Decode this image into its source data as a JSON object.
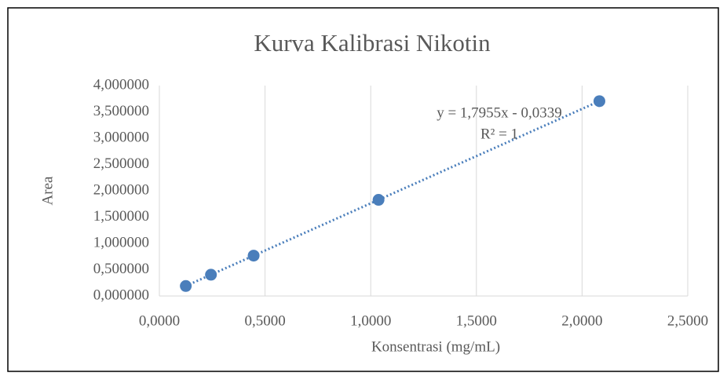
{
  "chart_data": {
    "type": "scatter",
    "title": "Kurva Kalibrasi Nikotin",
    "x_label": "Konsentrasi (mg/mL)",
    "y_label": "Area",
    "x": [
      0.125,
      0.244,
      0.446,
      1.037,
      2.082
    ],
    "series": [
      {
        "color": "#4a7ebb",
        "values": [
          0.19,
          0.404,
          0.767,
          1.828,
          3.704
        ]
      }
    ],
    "trendline": {
      "equation": "y = 1,7955x - 0,0339",
      "slope": 1.7955,
      "intercept": -0.0339,
      "r_squared_label": "R² = 1",
      "style": "dotted"
    },
    "xlim": [
      0,
      2.5
    ],
    "xticks": [
      {
        "value": 0,
        "label": "0,0000"
      },
      {
        "value": 0.5,
        "label": "0,5000"
      },
      {
        "value": 1,
        "label": "1,0000"
      },
      {
        "value": 1.5,
        "label": "1,5000"
      },
      {
        "value": 2,
        "label": "2,0000"
      },
      {
        "value": 2.5,
        "label": "2,5000"
      }
    ],
    "ylim": [
      0,
      4
    ],
    "yticks": [
      {
        "value": 0,
        "label": "0,000000"
      },
      {
        "value": 0.5,
        "label": "0,500000"
      },
      {
        "value": 1,
        "label": "1,000000"
      },
      {
        "value": 1.5,
        "label": "1,500000"
      },
      {
        "value": 2,
        "label": "2,000000"
      },
      {
        "value": 2.5,
        "label": "2,500000"
      },
      {
        "value": 3,
        "label": "3,000000"
      },
      {
        "value": 3.5,
        "label": "3,500000"
      },
      {
        "value": 4,
        "label": "4,000000"
      }
    ],
    "grid": "x"
  }
}
